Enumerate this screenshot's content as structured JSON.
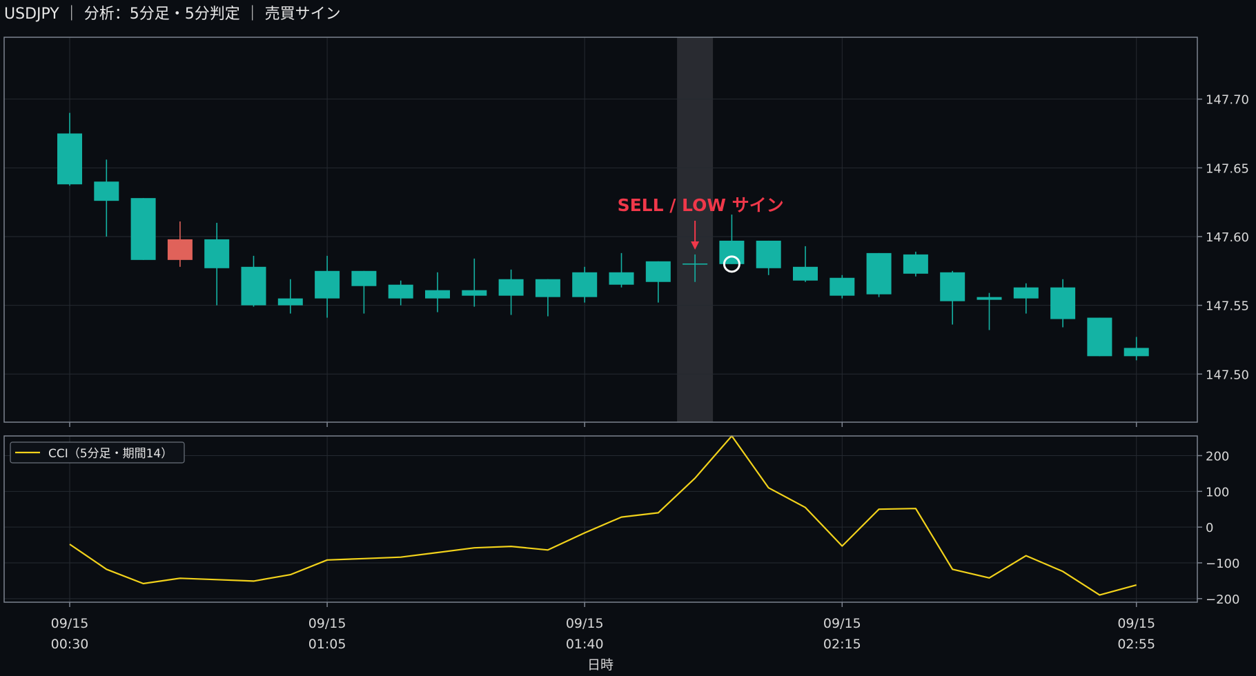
{
  "title": "USDJPY ｜ 分析：5分足・5分判定 ｜ 売買サイン",
  "colors": {
    "background": "#0a0d12",
    "up": "#14b3a4",
    "down": "#e0625a",
    "cci_line": "#f2d21b",
    "signal": "#f0384a",
    "highlight": "#2c2f35",
    "grid": "#252a31",
    "frame": "#7d8490"
  },
  "signal": {
    "label": "SELL / LOW サイン",
    "time": "01:55"
  },
  "chart_data": [
    {
      "type": "candlestick",
      "y_ticks": [
        "147.70",
        "147.65",
        "147.60",
        "147.55",
        "147.50"
      ],
      "ylim": [
        147.465,
        147.745
      ],
      "x": [
        "00:30",
        "00:35",
        "00:40",
        "00:45",
        "00:50",
        "00:55",
        "01:00",
        "01:05",
        "01:10",
        "01:15",
        "01:20",
        "01:25",
        "01:30",
        "01:35",
        "01:40",
        "01:45",
        "01:50",
        "01:55",
        "02:00",
        "02:05",
        "02:10",
        "02:15",
        "02:20",
        "02:25",
        "02:30",
        "02:35",
        "02:40",
        "02:45",
        "02:50",
        "02:55"
      ],
      "candles": [
        {
          "o": 147.638,
          "h": 147.69,
          "l": 147.637,
          "c": 147.675
        },
        {
          "o": 147.626,
          "h": 147.656,
          "l": 147.6,
          "c": 147.64
        },
        {
          "o": 147.583,
          "h": 147.628,
          "l": 147.583,
          "c": 147.628
        },
        {
          "o": 147.598,
          "h": 147.611,
          "l": 147.578,
          "c": 147.583
        },
        {
          "o": 147.577,
          "h": 147.61,
          "l": 147.55,
          "c": 147.598
        },
        {
          "o": 147.55,
          "h": 147.586,
          "l": 147.549,
          "c": 147.578
        },
        {
          "o": 147.55,
          "h": 147.569,
          "l": 147.544,
          "c": 147.555
        },
        {
          "o": 147.555,
          "h": 147.586,
          "l": 147.541,
          "c": 147.575
        },
        {
          "o": 147.564,
          "h": 147.575,
          "l": 147.544,
          "c": 147.575
        },
        {
          "o": 147.555,
          "h": 147.568,
          "l": 147.55,
          "c": 147.565
        },
        {
          "o": 147.555,
          "h": 147.574,
          "l": 147.545,
          "c": 147.561
        },
        {
          "o": 147.557,
          "h": 147.584,
          "l": 147.549,
          "c": 147.561
        },
        {
          "o": 147.557,
          "h": 147.576,
          "l": 147.543,
          "c": 147.569
        },
        {
          "o": 147.556,
          "h": 147.569,
          "l": 147.542,
          "c": 147.569
        },
        {
          "o": 147.556,
          "h": 147.578,
          "l": 147.552,
          "c": 147.574
        },
        {
          "o": 147.565,
          "h": 147.588,
          "l": 147.563,
          "c": 147.574
        },
        {
          "o": 147.567,
          "h": 147.582,
          "l": 147.552,
          "c": 147.582
        },
        {
          "o": 147.58,
          "h": 147.587,
          "l": 147.567,
          "c": 147.58
        },
        {
          "o": 147.58,
          "h": 147.616,
          "l": 147.58,
          "c": 147.597
        },
        {
          "o": 147.577,
          "h": 147.597,
          "l": 147.572,
          "c": 147.597
        },
        {
          "o": 147.568,
          "h": 147.593,
          "l": 147.567,
          "c": 147.578
        },
        {
          "o": 147.557,
          "h": 147.572,
          "l": 147.555,
          "c": 147.57
        },
        {
          "o": 147.558,
          "h": 147.588,
          "l": 147.556,
          "c": 147.588
        },
        {
          "o": 147.573,
          "h": 147.589,
          "l": 147.571,
          "c": 147.587
        },
        {
          "o": 147.553,
          "h": 147.575,
          "l": 147.536,
          "c": 147.574
        },
        {
          "o": 147.554,
          "h": 147.559,
          "l": 147.532,
          "c": 147.556
        },
        {
          "o": 147.555,
          "h": 147.566,
          "l": 147.544,
          "c": 147.563
        },
        {
          "o": 147.54,
          "h": 147.569,
          "l": 147.534,
          "c": 147.563
        },
        {
          "o": 147.513,
          "h": 147.541,
          "l": 147.513,
          "c": 147.541
        },
        {
          "o": 147.513,
          "h": 147.527,
          "l": 147.51,
          "c": 147.519
        }
      ]
    },
    {
      "type": "line",
      "legend": "CCI（5分足・期間14）",
      "y_ticks": [
        "200",
        "100",
        "0",
        "−100",
        "−200"
      ],
      "ylim": [
        -210,
        255
      ],
      "values": [
        -48,
        -118,
        -158,
        -143,
        -147,
        -151,
        -133,
        -92,
        -88,
        -84,
        -71,
        -58,
        -54,
        -64,
        -16,
        28,
        40,
        137,
        255,
        110,
        55,
        -53,
        50,
        52,
        -118,
        -142,
        -80,
        -124,
        -190,
        -162
      ]
    }
  ],
  "x_axis": {
    "label": "日時",
    "ticks": [
      {
        "date": "09/15",
        "time": "00:30"
      },
      {
        "date": "09/15",
        "time": "01:05"
      },
      {
        "date": "09/15",
        "time": "01:40"
      },
      {
        "date": "09/15",
        "time": "02:15"
      },
      {
        "date": "09/15",
        "time": "02:55"
      }
    ]
  }
}
